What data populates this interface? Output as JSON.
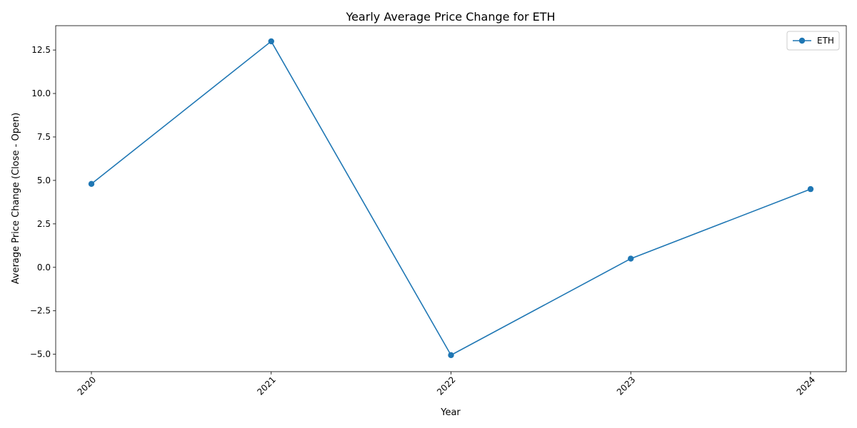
{
  "chart_data": {
    "type": "line",
    "title": "Yearly Average Price Change for ETH",
    "xlabel": "Year",
    "ylabel": "Average Price Change (Close - Open)",
    "categories": [
      "2020",
      "2021",
      "2022",
      "2023",
      "2024"
    ],
    "series": [
      {
        "name": "ETH",
        "values": [
          4.8,
          13.0,
          -5.05,
          0.5,
          4.5
        ],
        "color": "#1f77b4",
        "marker": "circle"
      }
    ],
    "ylim": [
      -6.0,
      13.9
    ],
    "yticks": [
      -5.0,
      -2.5,
      0.0,
      2.5,
      5.0,
      7.5,
      10.0,
      12.5
    ],
    "ytick_labels": [
      "−5.0",
      "−2.5",
      "0.0",
      "2.5",
      "5.0",
      "7.5",
      "10.0",
      "12.5"
    ],
    "xtick_rotation": 45,
    "grid": false,
    "legend_position": "top-right"
  }
}
